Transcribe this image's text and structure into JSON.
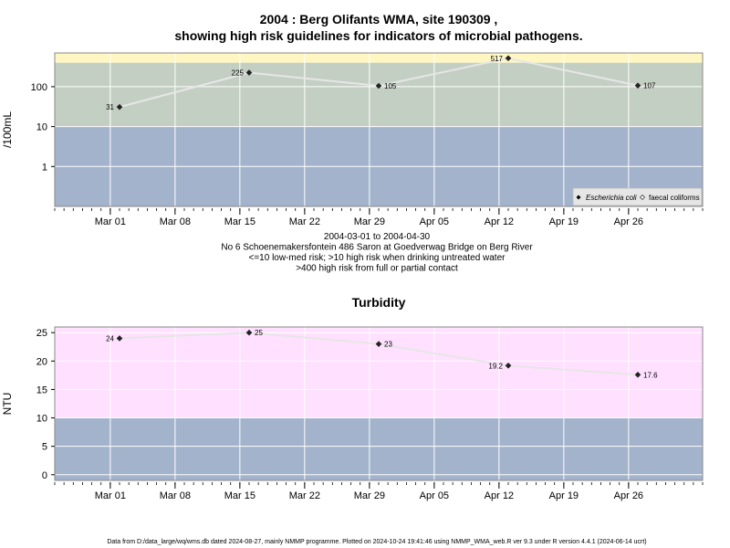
{
  "footer": "Data from D:/data_large/wq/wms.db dated 2024-08-27, mainly NMMP programme. Plotted on 2024-10-24 19:41:46 using NMMP_WMA_web.R ver 9.3 under R version 4.4.1 (2024-06-14 ucrt)",
  "colors": {
    "low": "#a2b3cb",
    "mid": "#c4cfc3",
    "high": "#fff6c2",
    "turb_high": "#ffe0ff",
    "line": "#e6e6e6",
    "point": "#222222",
    "grid": "#ffffff"
  },
  "chart_data": [
    {
      "type": "line",
      "title_line1": "2004 : Berg Olifants WMA, site 190309 ,",
      "title_line2": "showing high risk guidelines for indicators of microbial pathogens.",
      "ylabel": "/100mL",
      "y_scale": "log",
      "ylim": [
        0.1,
        700
      ],
      "y_ticks": [
        1,
        10,
        100
      ],
      "y_tick_labels": [
        "1",
        "10",
        "100"
      ],
      "xlim": [
        "2004-02-24",
        "2004-05-04"
      ],
      "x_ticks": [
        "2004-03-01",
        "2004-03-08",
        "2004-03-15",
        "2004-03-22",
        "2004-03-29",
        "2004-04-05",
        "2004-04-12",
        "2004-04-19",
        "2004-04-26"
      ],
      "x_tick_labels": [
        "Mar 01",
        "Mar 08",
        "Mar 15",
        "Mar 22",
        "Mar 29",
        "Apr 05",
        "Apr 12",
        "Apr 19",
        "Apr 26"
      ],
      "bands": [
        {
          "from": 0.1,
          "to": 10,
          "color_key": "low"
        },
        {
          "from": 10,
          "to": 400,
          "color_key": "mid"
        },
        {
          "from": 400,
          "to": 700,
          "color_key": "high"
        }
      ],
      "series": [
        {
          "name": "Escherichia coli",
          "x": [
            "2004-03-02",
            "2004-03-16",
            "2004-03-30",
            "2004-04-13",
            "2004-04-27"
          ],
          "y": [
            31,
            225,
            105,
            517,
            107
          ],
          "labels": [
            "31",
            "225",
            "105",
            "517",
            "107"
          ],
          "label_side": [
            "left",
            "left",
            "right",
            "left",
            "right"
          ]
        }
      ],
      "legend": {
        "position": "bottom-right",
        "items": [
          "Escherichia coli",
          "faecal coliforms"
        ]
      },
      "sub_lines": [
        "2004-03-01 to 2004-04-30",
        "No 6 Schoenemakersfontein 486 Saron at Goedverwag Bridge on Berg River",
        "<=10 low-med risk; >10 high risk when drinking untreated water",
        ">400 high risk from full or partial contact"
      ]
    },
    {
      "type": "line",
      "title": "Turbidity",
      "ylabel": "NTU",
      "y_scale": "linear",
      "ylim": [
        -1,
        26
      ],
      "y_ticks": [
        0,
        5,
        10,
        15,
        20,
        25
      ],
      "y_tick_labels": [
        "0",
        "5",
        "10",
        "15",
        "20",
        "25"
      ],
      "xlim": [
        "2004-02-24",
        "2004-05-04"
      ],
      "x_ticks": [
        "2004-03-01",
        "2004-03-08",
        "2004-03-15",
        "2004-03-22",
        "2004-03-29",
        "2004-04-05",
        "2004-04-12",
        "2004-04-19",
        "2004-04-26"
      ],
      "x_tick_labels": [
        "Mar 01",
        "Mar 08",
        "Mar 15",
        "Mar 22",
        "Mar 29",
        "Apr 05",
        "Apr 12",
        "Apr 19",
        "Apr 26"
      ],
      "bands": [
        {
          "from": -1,
          "to": 10,
          "color_key": "low"
        },
        {
          "from": 10,
          "to": 26,
          "color_key": "turb_high"
        }
      ],
      "series": [
        {
          "name": "Turbidity",
          "x": [
            "2004-03-02",
            "2004-03-16",
            "2004-03-30",
            "2004-04-13",
            "2004-04-27"
          ],
          "y": [
            24,
            25,
            23,
            19.2,
            17.6
          ],
          "labels": [
            "24",
            "25",
            "23",
            "19.2",
            "17.6"
          ],
          "label_side": [
            "left",
            "right",
            "right",
            "left",
            "right"
          ]
        }
      ]
    }
  ]
}
